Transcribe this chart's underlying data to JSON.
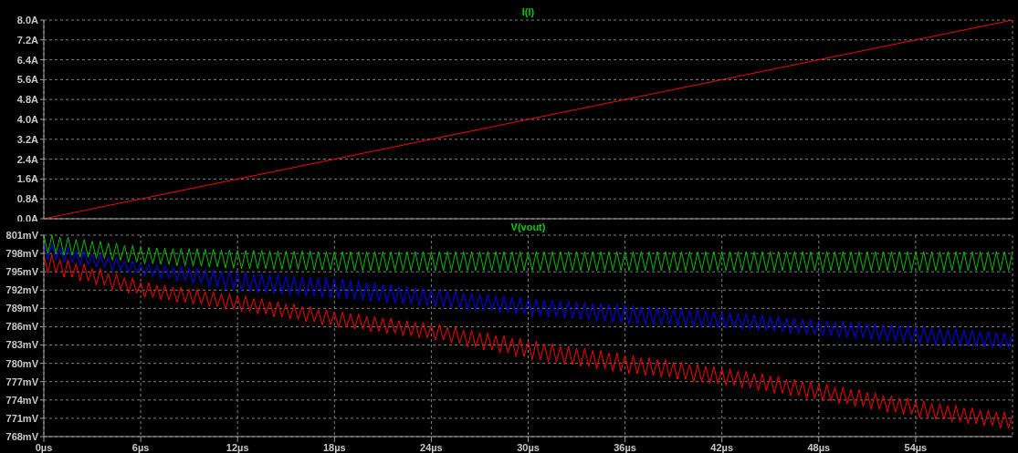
{
  "chart_data": [
    {
      "type": "line",
      "title": "I(l)",
      "x": [
        0,
        60
      ],
      "xlim": [
        0,
        60
      ],
      "xticks": [
        {
          "value": 0,
          "label": null
        },
        {
          "value": 6,
          "label": null
        },
        {
          "value": 12,
          "label": null
        },
        {
          "value": 18,
          "label": null
        },
        {
          "value": 24,
          "label": null
        },
        {
          "value": 30,
          "label": null
        },
        {
          "value": 36,
          "label": null
        },
        {
          "value": 42,
          "label": null
        },
        {
          "value": 48,
          "label": null
        },
        {
          "value": 54,
          "label": null
        }
      ],
      "ylim": [
        0,
        8
      ],
      "yticks": [
        {
          "value": 0,
          "label": "0.0A"
        },
        {
          "value": 0.8,
          "label": "0.8A"
        },
        {
          "value": 1.6,
          "label": "1.6A"
        },
        {
          "value": 2.4,
          "label": "2.4A"
        },
        {
          "value": 3.2,
          "label": "3.2A"
        },
        {
          "value": 4,
          "label": "4.0A"
        },
        {
          "value": 4.8,
          "label": "4.8A"
        },
        {
          "value": 5.6,
          "label": "5.6A"
        },
        {
          "value": 6.4,
          "label": "6.4A"
        },
        {
          "value": 7.2,
          "label": "7.2A"
        },
        {
          "value": 8,
          "label": "8.0A"
        }
      ],
      "tick_labels": "y",
      "grid": true,
      "series": [
        {
          "color": "#ff0000",
          "values": [
            0,
            8
          ]
        }
      ]
    },
    {
      "type": "line",
      "title": "V(vout)",
      "xlim": [
        0,
        60
      ],
      "xticks": [
        {
          "value": 0,
          "label": "0µs"
        },
        {
          "value": 6,
          "label": "6µs"
        },
        {
          "value": 12,
          "label": "12µs"
        },
        {
          "value": 18,
          "label": "18µs"
        },
        {
          "value": 24,
          "label": "24µs"
        },
        {
          "value": 30,
          "label": "30µs"
        },
        {
          "value": 36,
          "label": "36µs"
        },
        {
          "value": 42,
          "label": "42µs"
        },
        {
          "value": 48,
          "label": "48µs"
        },
        {
          "value": 54,
          "label": "54µs"
        }
      ],
      "ylim": [
        768,
        801
      ],
      "yticks": [
        {
          "value": 768,
          "label": "768mV"
        },
        {
          "value": 771,
          "label": "771mV"
        },
        {
          "value": 774,
          "label": "774mV"
        },
        {
          "value": 777,
          "label": "777mV"
        },
        {
          "value": 780,
          "label": "780mV"
        },
        {
          "value": 783,
          "label": "783mV"
        },
        {
          "value": 786,
          "label": "786mV"
        },
        {
          "value": 789,
          "label": "789mV"
        },
        {
          "value": 792,
          "label": "792mV"
        },
        {
          "value": 795,
          "label": "795mV"
        },
        {
          "value": 798,
          "label": "798mV"
        },
        {
          "value": 801,
          "label": "801mV"
        }
      ],
      "grid": true,
      "x": [
        0,
        0.25,
        0.5,
        0.75,
        1,
        1.25,
        1.5,
        1.75,
        2,
        2.25,
        2.5,
        2.75,
        3,
        3.25,
        3.5,
        3.75,
        4,
        4.25,
        4.5,
        4.75,
        5,
        5.25,
        5.5,
        5.75,
        6,
        6.25,
        6.5,
        6.75,
        7,
        7.25,
        7.5,
        7.75,
        8,
        8.25,
        8.5,
        8.75,
        9,
        9.25,
        9.5,
        9.75,
        10,
        10.25,
        10.5,
        10.75,
        11,
        11.25,
        11.5,
        11.75,
        12,
        12.25,
        12.5,
        12.75,
        13,
        13.25,
        13.5,
        13.75,
        14,
        14.25,
        14.5,
        14.75,
        15,
        15.25,
        15.5,
        15.75,
        16,
        16.25,
        16.5,
        16.75,
        17,
        17.25,
        17.5,
        17.75,
        18,
        18.25,
        18.5,
        18.75,
        19,
        19.25,
        19.5,
        19.75,
        20,
        20.25,
        20.5,
        20.75,
        21,
        21.25,
        21.5,
        21.75,
        22,
        22.25,
        22.5,
        22.75,
        23,
        23.25,
        23.5,
        23.75,
        24,
        24.25,
        24.5,
        24.75,
        25,
        25.25,
        25.5,
        25.75,
        26,
        26.25,
        26.5,
        26.75,
        27,
        27.25,
        27.5,
        27.75,
        28,
        28.25,
        28.5,
        28.75,
        29,
        29.25,
        29.5,
        29.75,
        30,
        30.25,
        30.5,
        30.75,
        31,
        31.25,
        31.5,
        31.75,
        32,
        32.25,
        32.5,
        32.75,
        33,
        33.25,
        33.5,
        33.75,
        34,
        34.25,
        34.5,
        34.75,
        35,
        35.25,
        35.5,
        35.75,
        36,
        36.25,
        36.5,
        36.75,
        37,
        37.25,
        37.5,
        37.75,
        38,
        38.25,
        38.5,
        38.75,
        39,
        39.25,
        39.5,
        39.75,
        40,
        40.25,
        40.5,
        40.75,
        41,
        41.25,
        41.5,
        41.75,
        42,
        42.25,
        42.5,
        42.75,
        43,
        43.25,
        43.5,
        43.75,
        44,
        44.25,
        44.5,
        44.75,
        45,
        45.25,
        45.5,
        45.75,
        46,
        46.25,
        46.5,
        46.75,
        47,
        47.25,
        47.5,
        47.75,
        48,
        48.25,
        48.5,
        48.75,
        49,
        49.25,
        49.5,
        49.75,
        50,
        50.25,
        50.5,
        50.75,
        51,
        51.25,
        51.5,
        51.75,
        52,
        52.25,
        52.5,
        52.75,
        53,
        53.25,
        53.5,
        53.75,
        54,
        54.25,
        54.5,
        54.75,
        55,
        55.25,
        55.5,
        55.75,
        56,
        56.25,
        56.5,
        56.75,
        57,
        57.25,
        57.5,
        57.75,
        58,
        58.25,
        58.5,
        58.75,
        59,
        59.25,
        59.5,
        59.75,
        60
      ],
      "series": [
        {
          "color": "#00c000",
          "values": [
            801.0,
            798.0,
            801.0,
            798.0,
            800.7,
            797.7,
            800.7,
            797.7,
            800.3,
            797.4,
            800.3,
            797.4,
            800.0,
            797.2,
            800.0,
            797.2,
            799.7,
            796.9,
            799.7,
            796.9,
            799.3,
            796.6,
            799.3,
            796.6,
            799.0,
            796.3,
            799.0,
            796.3,
            798.9,
            796.2,
            798.9,
            796.2,
            798.8,
            796.0,
            798.8,
            796.0,
            798.8,
            795.9,
            798.8,
            795.9,
            798.7,
            795.8,
            798.7,
            795.8,
            798.6,
            795.6,
            798.6,
            795.6,
            798.5,
            795.5,
            798.5,
            795.5,
            798.5,
            795.5,
            798.5,
            795.5,
            798.4,
            795.4,
            798.4,
            795.4,
            798.4,
            795.4,
            798.4,
            795.4,
            798.4,
            795.3,
            798.4,
            795.3,
            798.3,
            795.3,
            798.3,
            795.3,
            798.3,
            795.2,
            798.3,
            795.2,
            798.3,
            795.2,
            798.3,
            795.2,
            798.3,
            795.2,
            798.3,
            795.2,
            798.3,
            795.2,
            798.3,
            795.2,
            798.3,
            795.2,
            798.3,
            795.2,
            798.3,
            795.2,
            798.3,
            795.2,
            798.3,
            795.2,
            798.3,
            795.2,
            798.3,
            795.2,
            798.3,
            795.2,
            798.3,
            795.2,
            798.3,
            795.2,
            798.3,
            795.2,
            798.3,
            795.2,
            798.3,
            795.2,
            798.3,
            795.2,
            798.3,
            795.2,
            798.3,
            795.2,
            798.3,
            795.2,
            798.3,
            795.2,
            798.3,
            795.2,
            798.3,
            795.2,
            798.3,
            795.2,
            798.3,
            795.2,
            798.3,
            795.2,
            798.3,
            795.2,
            798.3,
            795.2,
            798.3,
            795.2,
            798.3,
            795.2,
            798.3,
            795.2,
            798.3,
            795.2,
            798.3,
            795.2,
            798.3,
            795.2,
            798.3,
            795.2,
            798.3,
            795.2,
            798.3,
            795.2,
            798.3,
            795.2,
            798.3,
            795.2,
            798.3,
            795.2,
            798.3,
            795.2,
            798.3,
            795.2,
            798.3,
            795.2,
            798.3,
            795.2,
            798.3,
            795.2,
            798.3,
            795.2,
            798.3,
            795.2,
            798.3,
            795.2,
            798.3,
            795.2,
            798.3,
            795.2,
            798.3,
            795.2,
            798.3,
            795.2,
            798.3,
            795.2,
            798.3,
            795.2,
            798.3,
            795.2,
            798.3,
            795.2,
            798.3,
            795.2,
            798.3,
            795.2,
            798.3,
            795.2,
            798.3,
            795.2,
            798.3,
            795.2,
            798.3,
            795.2,
            798.3,
            795.2,
            798.3,
            795.2,
            798.3,
            795.2,
            798.3,
            795.2,
            798.3,
            795.2,
            798.3,
            795.2,
            798.3,
            795.2,
            798.3,
            795.2,
            798.3,
            795.2,
            798.3,
            795.2,
            798.3,
            795.2,
            798.3,
            795.2,
            798.3,
            795.2,
            798.3,
            795.2,
            798.3,
            795.2,
            798.3,
            795.2,
            798.3,
            795.2,
            798.3
          ]
        },
        {
          "color": "#0000ff",
          "values": [
            799.5,
            797.0,
            799.5,
            797.0,
            799.0,
            796.6,
            799.0,
            796.6,
            798.4,
            796.1,
            798.4,
            796.1,
            797.9,
            795.7,
            797.9,
            795.7,
            797.4,
            795.2,
            797.4,
            795.2,
            796.8,
            794.8,
            796.8,
            794.8,
            796.3,
            794.3,
            796.3,
            794.3,
            796.1,
            793.9,
            796.1,
            793.9,
            795.8,
            793.5,
            795.8,
            793.5,
            795.6,
            793.1,
            795.6,
            793.1,
            795.3,
            792.6,
            795.3,
            792.6,
            795.1,
            792.2,
            795.1,
            792.2,
            794.8,
            791.8,
            794.8,
            791.8,
            794.6,
            791.6,
            794.6,
            791.6,
            794.5,
            791.4,
            794.5,
            791.4,
            794.3,
            791.2,
            794.3,
            791.2,
            794.1,
            791.0,
            794.1,
            791.0,
            794.0,
            790.8,
            794.0,
            790.8,
            793.8,
            790.6,
            793.8,
            790.6,
            793.5,
            790.4,
            793.5,
            790.4,
            793.2,
            790.2,
            793.2,
            790.2,
            792.9,
            789.9,
            792.9,
            789.9,
            792.6,
            789.7,
            792.6,
            789.7,
            792.3,
            789.5,
            792.3,
            789.5,
            792.0,
            789.3,
            792.0,
            789.3,
            791.8,
            789.1,
            791.8,
            789.1,
            791.5,
            788.8,
            791.5,
            788.8,
            791.3,
            788.6,
            791.3,
            788.6,
            791.0,
            788.3,
            791.0,
            788.3,
            790.8,
            788.1,
            790.8,
            788.1,
            790.5,
            787.8,
            790.5,
            787.8,
            790.3,
            787.6,
            790.3,
            787.6,
            790.2,
            787.4,
            790.2,
            787.4,
            790.0,
            787.2,
            790.0,
            787.2,
            789.8,
            786.9,
            789.8,
            786.9,
            789.7,
            786.7,
            789.7,
            786.7,
            789.5,
            786.5,
            789.5,
            786.5,
            789.3,
            786.4,
            789.3,
            786.4,
            789.1,
            786.3,
            789.1,
            786.3,
            788.9,
            786.2,
            788.9,
            786.2,
            788.7,
            786.0,
            788.7,
            786.0,
            788.5,
            785.9,
            788.5,
            785.9,
            788.3,
            785.8,
            788.3,
            785.8,
            788.1,
            785.6,
            788.1,
            785.6,
            787.9,
            785.4,
            787.9,
            785.4,
            787.7,
            785.2,
            787.7,
            785.2,
            787.4,
            784.9,
            787.4,
            784.9,
            787.2,
            784.7,
            787.2,
            784.7,
            787.0,
            784.5,
            787.0,
            784.5,
            786.8,
            784.3,
            786.8,
            784.3,
            786.7,
            784.1,
            786.7,
            784.1,
            786.5,
            783.9,
            786.5,
            783.9,
            786.3,
            783.7,
            786.3,
            783.7,
            786.2,
            783.5,
            786.2,
            783.5,
            786.0,
            783.3,
            786.0,
            783.3,
            785.8,
            783.1,
            785.8,
            783.1,
            785.6,
            783.0,
            785.6,
            783.0,
            785.4,
            782.8,
            785.4,
            782.8,
            785.2,
            782.6,
            785.2,
            782.6,
            785.0,
            782.5,
            785.0,
            782.5,
            784.8
          ]
        },
        {
          "color": "#ff0000",
          "values": [
            797.8,
            794.8,
            797.8,
            794.8,
            797.0,
            794.1,
            797.0,
            794.1,
            796.3,
            793.5,
            796.3,
            793.5,
            795.5,
            792.8,
            795.5,
            792.8,
            794.7,
            792.1,
            794.7,
            792.1,
            794.0,
            791.5,
            794.0,
            791.5,
            793.2,
            790.8,
            793.2,
            790.8,
            792.8,
            790.4,
            792.8,
            790.4,
            792.5,
            790.0,
            792.5,
            790.0,
            792.1,
            789.7,
            792.1,
            789.7,
            791.7,
            789.3,
            791.7,
            789.3,
            791.4,
            788.9,
            791.4,
            788.9,
            791.0,
            788.5,
            791.0,
            788.5,
            790.6,
            788.1,
            790.6,
            788.1,
            790.1,
            787.6,
            790.1,
            787.6,
            789.7,
            787.2,
            789.7,
            787.2,
            789.3,
            786.8,
            789.3,
            786.8,
            788.8,
            786.3,
            788.8,
            786.3,
            788.4,
            785.9,
            788.4,
            785.9,
            788.1,
            785.6,
            788.1,
            785.6,
            787.7,
            785.2,
            787.7,
            785.2,
            787.4,
            784.9,
            787.4,
            784.9,
            787.0,
            784.5,
            787.0,
            784.5,
            786.7,
            784.2,
            786.7,
            784.2,
            786.3,
            783.8,
            786.3,
            783.8,
            785.9,
            783.3,
            785.9,
            783.3,
            785.4,
            782.7,
            785.4,
            782.7,
            785.0,
            782.2,
            785.0,
            782.2,
            784.5,
            781.7,
            784.5,
            781.7,
            784.1,
            781.1,
            784.1,
            781.1,
            783.6,
            780.6,
            783.6,
            780.6,
            783.2,
            780.2,
            783.2,
            780.2,
            782.8,
            779.8,
            782.8,
            779.8,
            782.5,
            779.5,
            782.5,
            779.5,
            782.1,
            779.1,
            782.1,
            779.1,
            781.7,
            778.7,
            781.7,
            778.7,
            781.3,
            778.3,
            781.3,
            778.3,
            780.9,
            778.0,
            780.9,
            778.0,
            780.6,
            777.7,
            780.6,
            777.7,
            780.2,
            777.4,
            780.2,
            777.4,
            779.8,
            777.0,
            779.8,
            777.0,
            779.5,
            776.7,
            779.5,
            776.7,
            779.1,
            776.4,
            779.1,
            776.4,
            778.7,
            776.0,
            778.7,
            776.0,
            778.3,
            775.5,
            778.3,
            775.5,
            777.9,
            775.1,
            777.9,
            775.1,
            777.4,
            774.7,
            777.4,
            774.7,
            777.0,
            774.2,
            777.0,
            774.2,
            776.6,
            773.8,
            776.6,
            773.8,
            776.1,
            773.4,
            776.1,
            773.4,
            775.7,
            772.9,
            775.7,
            772.9,
            775.2,
            772.5,
            775.2,
            772.5,
            774.7,
            772.0,
            774.7,
            772.0,
            774.3,
            771.6,
            774.3,
            771.6,
            773.8,
            771.1,
            773.8,
            771.1,
            773.4,
            770.8,
            773.4,
            770.8,
            773.1,
            770.4,
            773.1,
            770.4,
            772.7,
            770.1,
            772.7,
            770.1,
            772.3,
            769.8,
            772.3,
            769.8,
            772.0,
            769.4,
            772.0,
            769.4,
            771.6
          ]
        }
      ]
    }
  ]
}
